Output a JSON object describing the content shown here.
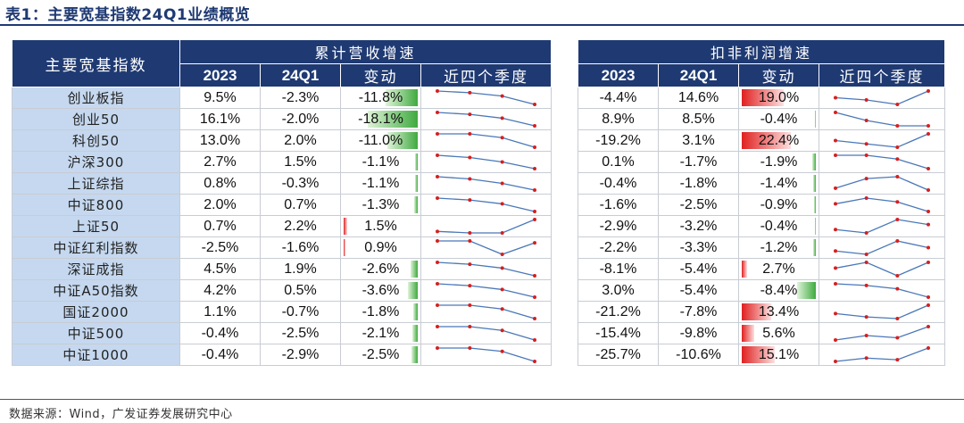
{
  "title": "表1：主要宽基指数24Q1业绩概览",
  "headers": {
    "name": "主要宽基指数",
    "revenue_group": "累计营收增速",
    "profit_group": "扣非利润增速",
    "col_2023": "2023",
    "col_24q1": "24Q1",
    "col_change": "变动",
    "col_trend": "近四个季度"
  },
  "rows": [
    {
      "name": "创业板指",
      "rev_2023": "9.5%",
      "rev_24q1": "-2.3%",
      "rev_chg": "-11.8%",
      "rev_chg_val": -11.8,
      "prof_2023": "-4.4%",
      "prof_24q1": "14.6%",
      "prof_chg": "19.0%",
      "prof_chg_val": 19.0,
      "rev_trend": [
        9,
        8,
        6,
        1
      ],
      "prof_trend": [
        7,
        6,
        4,
        10
      ]
    },
    {
      "name": "创业50",
      "rev_2023": "16.1%",
      "rev_24q1": "-2.0%",
      "rev_chg": "-18.1%",
      "rev_chg_val": -18.1,
      "prof_2023": "8.9%",
      "prof_24q1": "8.5%",
      "prof_chg": "-0.4%",
      "prof_chg_val": -0.4,
      "rev_trend": [
        9,
        8,
        6,
        2
      ],
      "prof_trend": [
        8,
        5,
        3,
        3
      ]
    },
    {
      "name": "科创50",
      "rev_2023": "13.0%",
      "rev_24q1": "2.0%",
      "rev_chg": "-11.0%",
      "rev_chg_val": -11.0,
      "prof_2023": "-19.2%",
      "prof_24q1": "3.1%",
      "prof_chg": "22.4%",
      "prof_chg_val": 22.4,
      "rev_trend": [
        8,
        8,
        6,
        1
      ],
      "prof_trend": [
        6,
        4,
        2,
        10
      ]
    },
    {
      "name": "沪深300",
      "rev_2023": "2.7%",
      "rev_24q1": "1.5%",
      "rev_chg": "-1.1%",
      "rev_chg_val": -1.1,
      "prof_2023": "0.1%",
      "prof_24q1": "-1.7%",
      "prof_chg": "-1.9%",
      "prof_chg_val": -1.9,
      "rev_trend": [
        9,
        8,
        6,
        3
      ],
      "prof_trend": [
        9,
        9,
        7,
        2
      ]
    },
    {
      "name": "上证综指",
      "rev_2023": "0.8%",
      "rev_24q1": "-0.3%",
      "rev_chg": "-1.1%",
      "rev_chg_val": -1.1,
      "prof_2023": "-0.4%",
      "prof_24q1": "-1.8%",
      "prof_chg": "-1.4%",
      "prof_chg_val": -1.4,
      "rev_trend": [
        9,
        8,
        6,
        3
      ],
      "prof_trend": [
        3,
        8,
        9,
        2
      ]
    },
    {
      "name": "中证800",
      "rev_2023": "2.0%",
      "rev_24q1": "0.7%",
      "rev_chg": "-1.3%",
      "rev_chg_val": -1.3,
      "prof_2023": "-1.6%",
      "prof_24q1": "-2.5%",
      "prof_chg": "-0.9%",
      "prof_chg_val": -0.9,
      "rev_trend": [
        9,
        8,
        6,
        2
      ],
      "prof_trend": [
        6,
        9,
        7,
        2
      ]
    },
    {
      "name": "上证50",
      "rev_2023": "0.7%",
      "rev_24q1": "2.2%",
      "rev_chg": "1.5%",
      "rev_chg_val": 1.5,
      "prof_2023": "-2.9%",
      "prof_24q1": "-3.2%",
      "prof_chg": "-0.4%",
      "prof_chg_val": -0.4,
      "rev_trend": [
        2,
        1,
        1,
        10
      ],
      "prof_trend": [
        4,
        2,
        10,
        7
      ]
    },
    {
      "name": "中证红利指数",
      "rev_2023": "-2.5%",
      "rev_24q1": "-1.6%",
      "rev_chg": "0.9%",
      "rev_chg_val": 0.9,
      "prof_2023": "-2.2%",
      "prof_24q1": "-3.3%",
      "prof_chg": "-1.2%",
      "prof_chg_val": -1.2,
      "rev_trend": [
        9,
        9,
        2,
        8
      ],
      "prof_trend": [
        4,
        2,
        10,
        6
      ]
    },
    {
      "name": "深证成指",
      "rev_2023": "4.5%",
      "rev_24q1": "1.9%",
      "rev_chg": "-2.6%",
      "rev_chg_val": -2.6,
      "prof_2023": "-8.1%",
      "prof_24q1": "-5.4%",
      "prof_chg": "2.7%",
      "prof_chg_val": 2.7,
      "rev_trend": [
        9,
        8,
        6,
        2
      ],
      "prof_trend": [
        6,
        9,
        2,
        9
      ]
    },
    {
      "name": "中证A50指数",
      "rev_2023": "4.2%",
      "rev_24q1": "0.5%",
      "rev_chg": "-3.6%",
      "rev_chg_val": -3.6,
      "prof_2023": "3.0%",
      "prof_24q1": "-5.4%",
      "prof_chg": "-8.4%",
      "prof_chg_val": -8.4,
      "rev_trend": [
        9,
        8,
        6,
        2
      ],
      "prof_trend": [
        9,
        8,
        6,
        1
      ]
    },
    {
      "name": "国证2000",
      "rev_2023": "1.1%",
      "rev_24q1": "-0.7%",
      "rev_chg": "-1.8%",
      "rev_chg_val": -1.8,
      "prof_2023": "-21.2%",
      "prof_24q1": "-7.8%",
      "prof_chg": "13.4%",
      "prof_chg_val": 13.4,
      "rev_trend": [
        9,
        9,
        7,
        2
      ],
      "prof_trend": [
        5,
        3,
        2,
        10
      ]
    },
    {
      "name": "中证500",
      "rev_2023": "-0.4%",
      "rev_24q1": "-2.5%",
      "rev_chg": "-2.1%",
      "rev_chg_val": -2.1,
      "prof_2023": "-15.4%",
      "prof_24q1": "-9.8%",
      "prof_chg": "5.6%",
      "prof_chg_val": 5.6,
      "rev_trend": [
        9,
        9,
        7,
        2
      ],
      "prof_trend": [
        3,
        5,
        4,
        9
      ]
    },
    {
      "name": "中证1000",
      "rev_2023": "-0.4%",
      "rev_24q1": "-2.9%",
      "rev_chg": "-2.5%",
      "rev_chg_val": -2.5,
      "prof_2023": "-25.7%",
      "prof_24q1": "-10.6%",
      "prof_chg": "15.1%",
      "prof_chg_val": 15.1,
      "rev_trend": [
        9,
        9,
        7,
        1
      ],
      "prof_trend": [
        2,
        4,
        3,
        10
      ]
    }
  ],
  "source": "数据来源：Wind，广发证券发展研究中心",
  "colors": {
    "header_bg": "#1f3a73",
    "name_bg": "#c5d8ef",
    "neg_bar": "#3faa3f",
    "pos_bar": "#e02020",
    "spark_line": "#4a78b8",
    "spark_dot": "#d42020"
  }
}
